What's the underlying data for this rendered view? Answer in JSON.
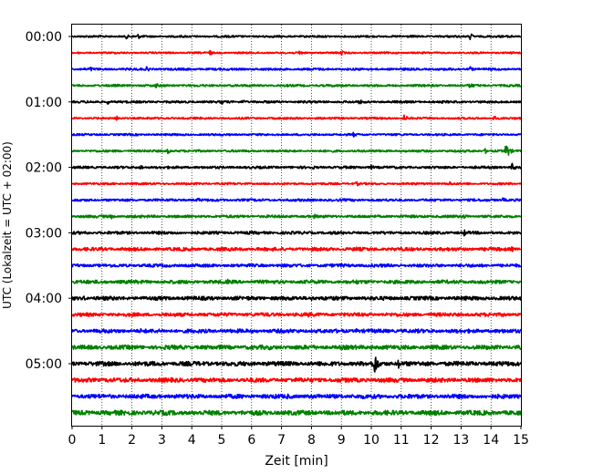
{
  "chart_data": {
    "type": "line",
    "title": "",
    "xlabel": "Zeit  [min]",
    "ylabel": "UTC (Lokalzeit = UTC + 02:00)",
    "xlim": [
      0,
      15
    ],
    "x_ticks": [
      0,
      1,
      2,
      3,
      4,
      5,
      6,
      7,
      8,
      9,
      10,
      11,
      12,
      13,
      14,
      15
    ],
    "y_tick_labels": [
      "00:00",
      "01:00",
      "02:00",
      "03:00",
      "04:00",
      "05:00"
    ],
    "y_tick_rows": [
      0,
      4,
      8,
      12,
      16,
      20
    ],
    "row_duration_min": 15,
    "row_count": 24,
    "color_cycle": [
      "#000000",
      "#ff0000",
      "#0000ff",
      "#008000"
    ],
    "grid": "vertical dotted",
    "legend": "none",
    "rows": [
      {
        "start": "00:00",
        "color": "#000000",
        "noise": 0.9,
        "events": [
          {
            "t": 1.8,
            "amp": 3
          },
          {
            "t": 2.2,
            "amp": 3
          },
          {
            "t": 13.3,
            "amp": 4
          },
          {
            "t": 14.6,
            "amp": 3
          }
        ]
      },
      {
        "start": "00:15",
        "color": "#ff0000",
        "noise": 0.8,
        "events": [
          {
            "t": 4.6,
            "amp": 3
          },
          {
            "t": 7.6,
            "amp": 3
          },
          {
            "t": 9.0,
            "amp": 3
          }
        ]
      },
      {
        "start": "00:30",
        "color": "#0000ff",
        "noise": 1.0,
        "events": [
          {
            "t": 0.6,
            "amp": 3
          },
          {
            "t": 2.5,
            "amp": 3
          },
          {
            "t": 13.3,
            "amp": 3
          }
        ]
      },
      {
        "start": "00:45",
        "color": "#008000",
        "noise": 1.0,
        "events": [
          {
            "t": 2.8,
            "amp": 3
          },
          {
            "t": 13.3,
            "amp": 4
          }
        ]
      },
      {
        "start": "01:00",
        "color": "#000000",
        "noise": 1.0,
        "events": [
          {
            "t": 1.2,
            "amp": 3
          },
          {
            "t": 5.0,
            "amp": 3
          },
          {
            "t": 5.7,
            "amp": 3
          },
          {
            "t": 9.6,
            "amp": 3
          }
        ]
      },
      {
        "start": "01:15",
        "color": "#ff0000",
        "noise": 0.9,
        "events": [
          {
            "t": 1.5,
            "amp": 3
          },
          {
            "t": 11.1,
            "amp": 4
          },
          {
            "t": 14.1,
            "amp": 3
          }
        ]
      },
      {
        "start": "01:30",
        "color": "#0000ff",
        "noise": 0.9,
        "events": [
          {
            "t": 9.4,
            "amp": 3
          }
        ]
      },
      {
        "start": "01:45",
        "color": "#008000",
        "noise": 1.0,
        "events": [
          {
            "t": 3.2,
            "amp": 3
          },
          {
            "t": 13.8,
            "amp": 3
          },
          {
            "t": 14.5,
            "amp": 10
          }
        ]
      },
      {
        "start": "02:00",
        "color": "#000000",
        "noise": 1.1,
        "events": [
          {
            "t": 2.3,
            "amp": 3
          },
          {
            "t": 8.0,
            "amp": 3
          },
          {
            "t": 10.0,
            "amp": 3
          },
          {
            "t": 14.7,
            "amp": 5
          }
        ]
      },
      {
        "start": "02:15",
        "color": "#ff0000",
        "noise": 0.9,
        "events": [
          {
            "t": 9.5,
            "amp": 3
          },
          {
            "t": 12.6,
            "amp": 3
          }
        ]
      },
      {
        "start": "02:30",
        "color": "#0000ff",
        "noise": 1.1,
        "events": [
          {
            "t": 4.2,
            "amp": 3
          },
          {
            "t": 14.4,
            "amp": 3
          }
        ]
      },
      {
        "start": "02:45",
        "color": "#008000",
        "noise": 1.2,
        "events": [
          {
            "t": 1.3,
            "amp": 3
          },
          {
            "t": 8.1,
            "amp": 3
          },
          {
            "t": 13.1,
            "amp": 3
          }
        ]
      },
      {
        "start": "03:00",
        "color": "#000000",
        "noise": 1.3,
        "events": [
          {
            "t": 0.4,
            "amp": 3
          },
          {
            "t": 13.1,
            "amp": 4
          }
        ]
      },
      {
        "start": "03:15",
        "color": "#ff0000",
        "noise": 1.5,
        "events": [
          {
            "t": 9.5,
            "amp": 3
          },
          {
            "t": 14.7,
            "amp": 3
          }
        ]
      },
      {
        "start": "03:30",
        "color": "#0000ff",
        "noise": 1.4,
        "events": [
          {
            "t": 9.0,
            "amp": 3
          },
          {
            "t": 14.4,
            "amp": 3
          }
        ]
      },
      {
        "start": "03:45",
        "color": "#008000",
        "noise": 1.6,
        "events": [
          {
            "t": 5.2,
            "amp": 3
          },
          {
            "t": 9.5,
            "amp": 3
          }
        ]
      },
      {
        "start": "04:00",
        "color": "#000000",
        "noise": 1.7,
        "events": [
          {
            "t": 0.4,
            "amp": 3
          },
          {
            "t": 8.0,
            "amp": 3
          },
          {
            "t": 13.1,
            "amp": 4
          }
        ]
      },
      {
        "start": "04:15",
        "color": "#ff0000",
        "noise": 1.6,
        "events": [
          {
            "t": 7.9,
            "amp": 3
          },
          {
            "t": 14.4,
            "amp": 3
          }
        ]
      },
      {
        "start": "04:30",
        "color": "#0000ff",
        "noise": 1.7,
        "events": [
          {
            "t": 2.3,
            "amp": 3
          },
          {
            "t": 9.5,
            "amp": 3
          }
        ]
      },
      {
        "start": "04:45",
        "color": "#008000",
        "noise": 1.9,
        "events": [
          {
            "t": 6.6,
            "amp": 3
          },
          {
            "t": 10.0,
            "amp": 3
          }
        ]
      },
      {
        "start": "05:00",
        "color": "#000000",
        "noise": 2.0,
        "events": [
          {
            "t": 10.1,
            "amp": 14
          },
          {
            "t": 10.9,
            "amp": 6
          }
        ]
      },
      {
        "start": "05:15",
        "color": "#ff0000",
        "noise": 1.9,
        "events": [
          {
            "t": 1.2,
            "amp": 3
          },
          {
            "t": 10.1,
            "amp": 3
          }
        ]
      },
      {
        "start": "05:30",
        "color": "#0000ff",
        "noise": 1.9,
        "events": [
          {
            "t": 7.2,
            "amp": 3
          },
          {
            "t": 9.0,
            "amp": 3
          }
        ]
      },
      {
        "start": "05:45",
        "color": "#008000",
        "noise": 2.1,
        "events": [
          {
            "t": 6.4,
            "amp": 3
          },
          {
            "t": 14.8,
            "amp": 3
          }
        ]
      }
    ]
  }
}
